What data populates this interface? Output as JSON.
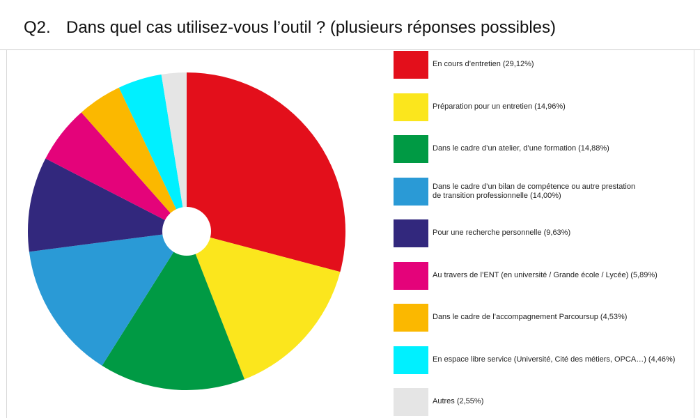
{
  "header": {
    "number": "Q2.",
    "title": "Dans quel cas utilisez-vous l’outil ? (plusieurs réponses possibles)"
  },
  "chart_data": {
    "type": "pie",
    "series": [
      {
        "label": "En cours d’entretien (29,12%)",
        "value": 29.12,
        "color": "#e30f1b"
      },
      {
        "label": "Préparation pour un entretien (14,96%)",
        "value": 14.96,
        "color": "#fbe61d"
      },
      {
        "label": "Dans le cadre d’un atelier, d’une formation (14,88%)",
        "value": 14.88,
        "color": "#009a44"
      },
      {
        "label": "Dans le cadre d’un bilan de compétence ou autre prestation\nde transition professionnelle (14,00%)",
        "value": 14.0,
        "color": "#2a9ad6"
      },
      {
        "label": "Pour une recherche personnelle (9,63%)",
        "value": 9.63,
        "color": "#32287d"
      },
      {
        "label": "Au travers de l’ENT (en université / Grande école / Lycée) (5,89%)",
        "value": 5.89,
        "color": "#e4037a"
      },
      {
        "label": "Dans le cadre de l’accompagnement Parcoursup (4,53%)",
        "value": 4.53,
        "color": "#fbb800"
      },
      {
        "label": "En espace libre service (Université, Cité des métiers, OPCA…) (4,46%)",
        "value": 4.46,
        "color": "#00f0ff"
      },
      {
        "label": "Autres (2,55%)",
        "value": 2.55,
        "color": "#e5e5e5"
      }
    ]
  }
}
